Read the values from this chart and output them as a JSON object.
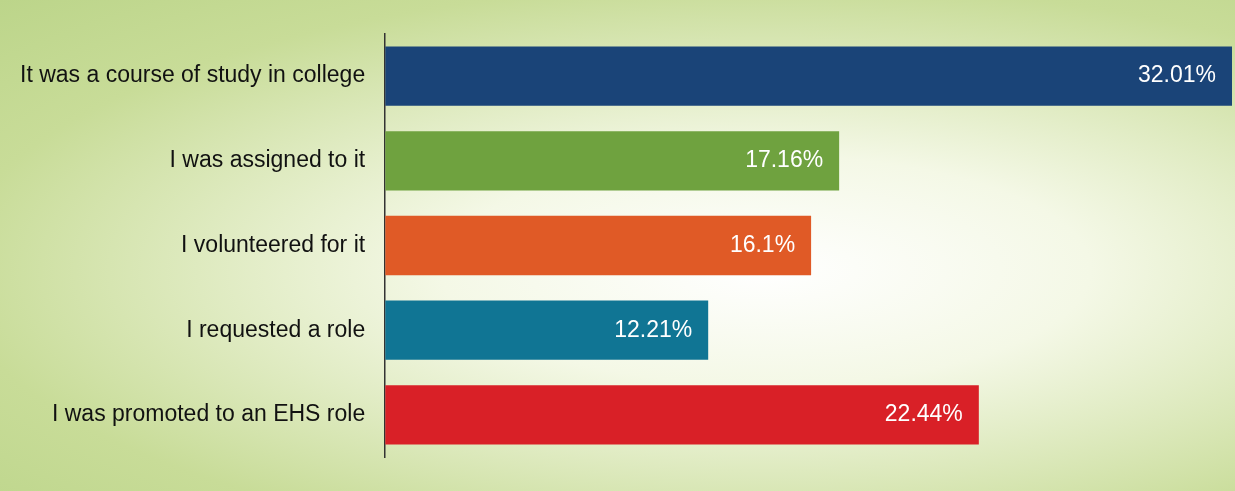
{
  "chart_data": {
    "type": "bar",
    "orientation": "horizontal",
    "categories": [
      "It was a course of study in college",
      "I was assigned to it",
      "I volunteered for it",
      "I requested a role",
      "I was promoted to an EHS role"
    ],
    "values": [
      32.01,
      17.16,
      16.1,
      12.21,
      22.44
    ],
    "colors": [
      "#1a4478",
      "#6fa23f",
      "#e05a26",
      "#107594",
      "#d92027"
    ],
    "value_labels": [
      "32.01%",
      "17.16%",
      "16.1%",
      "12.21%",
      "22.44%"
    ],
    "grid": false,
    "legend": false,
    "tick_labels": "y"
  }
}
